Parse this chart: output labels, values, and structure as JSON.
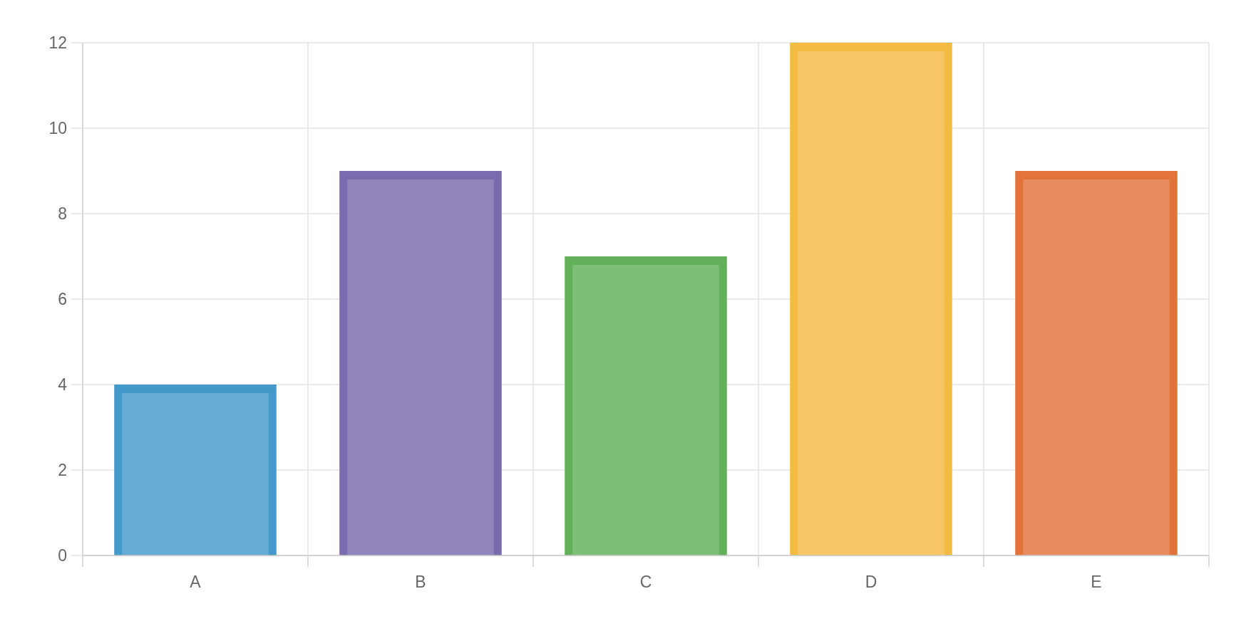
{
  "chart_data": {
    "type": "bar",
    "categories": [
      "A",
      "B",
      "C",
      "D",
      "E"
    ],
    "values": [
      4,
      9,
      7,
      12,
      9
    ],
    "colors": [
      "#4499cb",
      "#7b6aad",
      "#62b15a",
      "#f4bb43",
      "#e2733b"
    ],
    "ylim": [
      0,
      12
    ],
    "yticks": [
      0,
      2,
      4,
      6,
      8,
      10,
      12
    ],
    "grid": true
  }
}
